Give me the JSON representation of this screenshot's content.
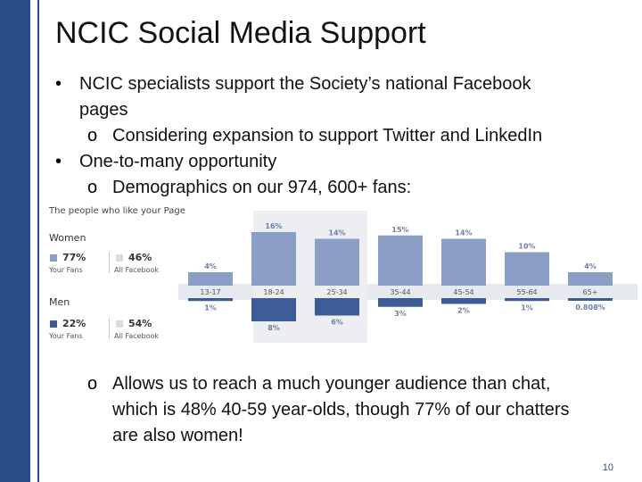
{
  "slide": {
    "title": "NCIC Social Media Support",
    "bullets": [
      {
        "marker": "•",
        "lines": [
          "NCIC specialists support the Society’s national Facebook",
          "pages"
        ]
      },
      {
        "marker": "o",
        "lines": [
          "Considering expansion to support Twitter and LinkedIn"
        ]
      },
      {
        "marker": "•",
        "lines": [
          "One-to-many opportunity"
        ]
      },
      {
        "marker": "o",
        "lines": [
          "Demographics on our 974, 600+ fans:"
        ]
      },
      {
        "marker": "o",
        "lines": [
          "Allows us to reach a much younger audience than chat,",
          "which is 48% 40-59 year-olds, though 77% of our chatters",
          "are also women!"
        ]
      }
    ],
    "page_number": "10"
  },
  "colors": {
    "accent": "#2a4f86",
    "women_bar": "#8b9fc6",
    "men_bar": "#3c5c98"
  },
  "chart_data": {
    "type": "bar",
    "title": "The people who like your Page",
    "categories": [
      "13-17",
      "18-24",
      "25-34",
      "35-44",
      "45-54",
      "55-64",
      "65+"
    ],
    "series": [
      {
        "name": "Women",
        "values": [
          4,
          16,
          14,
          15,
          14,
          10,
          4
        ],
        "labels": [
          "4%",
          "16%",
          "14%",
          "15%",
          "14%",
          "10%",
          "4%"
        ]
      },
      {
        "name": "Men",
        "values": [
          1,
          8,
          6,
          3,
          2,
          1,
          0.808
        ],
        "labels": [
          "1%",
          "8%",
          "6%",
          "3%",
          "2%",
          "1%",
          "0.808%"
        ]
      }
    ],
    "legend": {
      "women": {
        "label": "Women",
        "your_fans": "77%",
        "your_fans_label": "Your Fans",
        "all_facebook": "46%",
        "all_facebook_label": "All Facebook"
      },
      "men": {
        "label": "Men",
        "your_fans": "22%",
        "your_fans_label": "Your Fans",
        "all_facebook": "54%",
        "all_facebook_label": "All Facebook"
      }
    }
  }
}
